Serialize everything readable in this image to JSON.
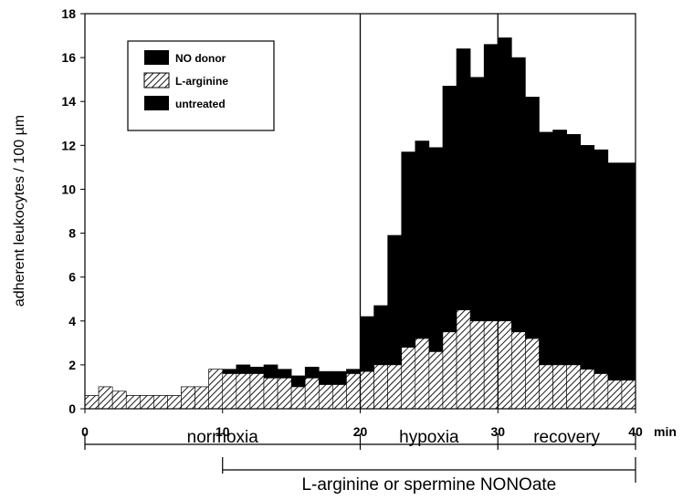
{
  "chart_data": {
    "type": "bar",
    "ylabel": "adherent leukocytes / 100 µm",
    "x_unit": "min",
    "xlim": [
      0,
      40
    ],
    "ylim": [
      0,
      18
    ],
    "x_ticks": [
      0,
      10,
      20,
      30,
      40
    ],
    "y_ticks": [
      0,
      2,
      4,
      6,
      8,
      10,
      12,
      14,
      16,
      18
    ],
    "bin_width": 1,
    "x": [
      1,
      2,
      3,
      4,
      5,
      6,
      7,
      8,
      9,
      10,
      11,
      12,
      13,
      14,
      15,
      16,
      17,
      18,
      19,
      20,
      21,
      22,
      23,
      24,
      25,
      26,
      27,
      28,
      29,
      30,
      31,
      32,
      33,
      34,
      35,
      36,
      37,
      38,
      39,
      40
    ],
    "series": [
      {
        "name": "NO donor",
        "color": "#000000",
        "pattern": "solid",
        "values": [
          0.6,
          1.0,
          0.8,
          0.6,
          0.6,
          0.6,
          0.6,
          1.0,
          1.0,
          1.8,
          1.8,
          2.0,
          1.9,
          2.0,
          1.8,
          1.5,
          1.9,
          1.7,
          1.7,
          1.8,
          4.2,
          4.7,
          7.9,
          11.7,
          12.2,
          11.9,
          14.7,
          16.4,
          15.1,
          16.6,
          16.9,
          16.0,
          14.2,
          12.6,
          12.7,
          12.5,
          12.0,
          11.8,
          11.2,
          11.2
        ]
      },
      {
        "name": "L-arginine",
        "color": "#000000",
        "pattern": "hatched",
        "values": [
          0.6,
          1.0,
          0.8,
          0.6,
          0.6,
          0.6,
          0.6,
          1.0,
          1.0,
          1.8,
          1.6,
          1.6,
          1.6,
          1.4,
          1.4,
          1.0,
          1.4,
          1.1,
          1.1,
          1.6,
          1.7,
          2.0,
          2.0,
          2.8,
          3.2,
          2.6,
          3.5,
          4.5,
          4.0,
          4.0,
          4.0,
          3.5,
          3.2,
          2.0,
          2.0,
          2.0,
          1.8,
          1.6,
          1.3,
          1.3
        ]
      },
      {
        "name": "untreated",
        "color": "#000000",
        "pattern": "solid",
        "values": [
          0,
          0,
          0,
          0,
          0,
          0,
          0,
          0.1,
          0.1,
          0.2,
          0.2,
          0.2,
          0.2,
          0.2,
          0.2,
          0.2,
          0.2,
          0.2,
          0.2,
          0.2,
          0.2,
          0.2,
          0.1,
          0.1,
          0.1,
          0.2,
          0.1,
          0.1,
          0.1,
          0.1,
          0.1,
          0.2,
          0.1,
          0.1,
          0.1,
          0.1,
          0.1,
          0.1,
          0.1,
          0.1
        ]
      }
    ],
    "phase_dividers": [
      20,
      30
    ],
    "phases": [
      {
        "label": "normoxia",
        "start": 0,
        "end": 20
      },
      {
        "label": "hypoxia",
        "start": 20,
        "end": 30
      },
      {
        "label": "recovery",
        "start": 30,
        "end": 40
      }
    ],
    "treatment": {
      "label": "L-arginine or spermine NONOate",
      "start": 10,
      "end": 40
    },
    "legend": {
      "position": "top-left"
    }
  }
}
